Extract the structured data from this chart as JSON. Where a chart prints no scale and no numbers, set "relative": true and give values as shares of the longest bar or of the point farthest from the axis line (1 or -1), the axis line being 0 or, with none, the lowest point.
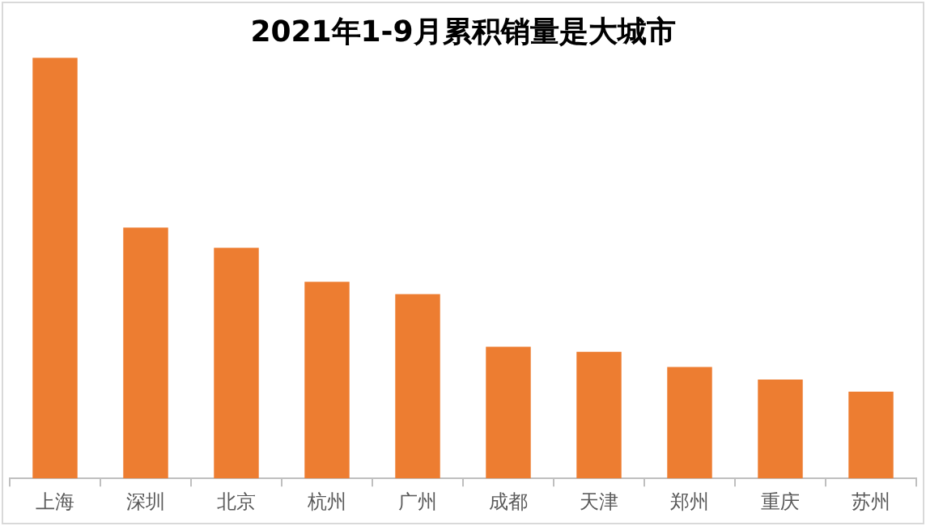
{
  "chart_data": {
    "type": "bar",
    "title": "2021年1-9月累积销量是大城市",
    "categories": [
      "上海",
      "深圳",
      "北京",
      "杭州",
      "广州",
      "成都",
      "天津",
      "郑州",
      "重庆",
      "苏州"
    ],
    "values": [
      1,
      0.596,
      0.548,
      0.467,
      0.438,
      0.313,
      0.301,
      0.265,
      0.235,
      0.206
    ],
    "color": "#ed7d31",
    "relative": true,
    "grid": false,
    "legend": false
  }
}
